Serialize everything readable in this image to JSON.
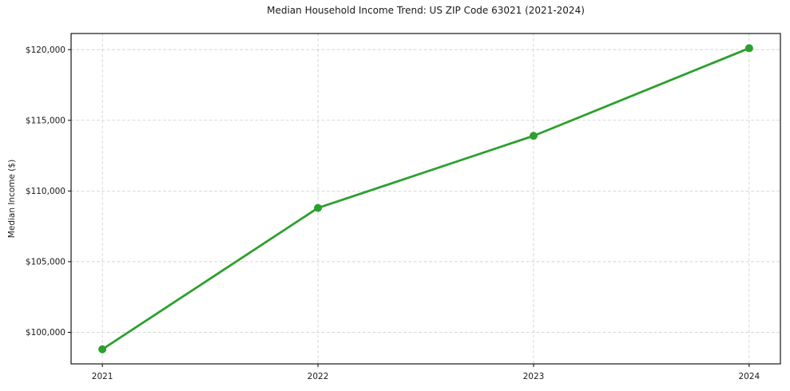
{
  "title": "Median Household Income Trend: US ZIP Code 63021 (2021-2024)",
  "chart_data": {
    "type": "line",
    "series_name": "Median Household Income",
    "x": [
      2021,
      2022,
      2023,
      2024
    ],
    "values": [
      98800,
      108800,
      113900,
      120100
    ],
    "title": "Median Household Income Trend: US ZIP Code 63021 (2021-2024)",
    "xlabel": "",
    "ylabel": "Median Income ($)",
    "x_tick_labels": [
      "2021",
      "2022",
      "2023",
      "2024"
    ],
    "y_ticks": [
      100000,
      105000,
      110000,
      115000,
      120000
    ],
    "y_tick_labels": [
      "$100,000",
      "$105,000",
      "$110,000",
      "$115,000",
      "$120,000"
    ],
    "xlim": [
      2020.855,
      2024.145
    ],
    "ylim": [
      97770,
      121140
    ],
    "grid": true,
    "grid_style": "dashed",
    "legend": "none",
    "line_color": "#2ca02c",
    "marker": "circle",
    "grid_color": "#cccccc",
    "spine_color": "#000000",
    "tick_color": "#000000"
  }
}
